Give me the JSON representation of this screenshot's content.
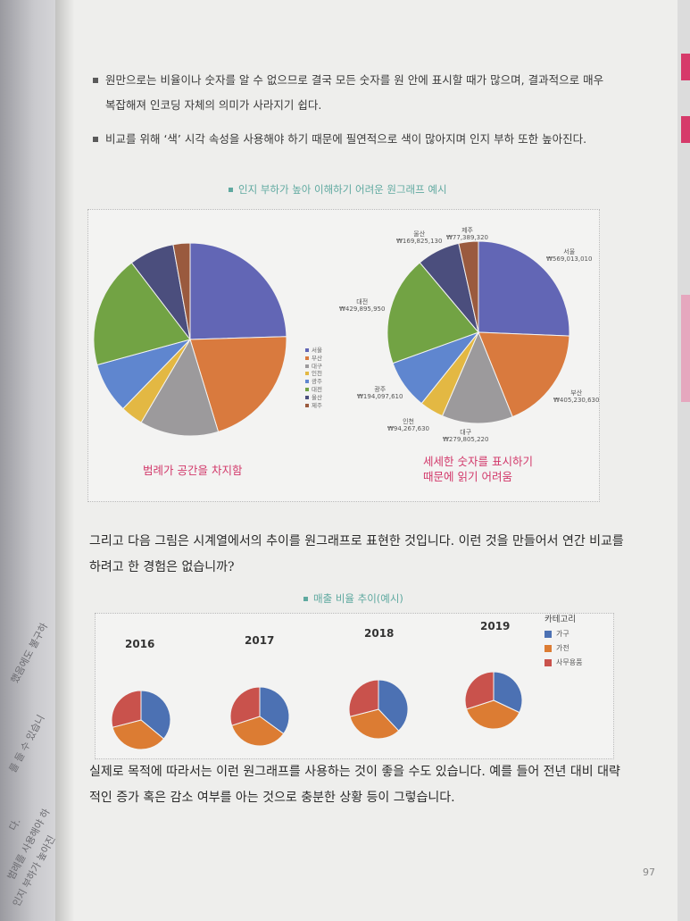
{
  "bullets": [
    "원만으로는 비율이나 숫자를 알 수 없으므로 결국 모든 숫자를 원 안에 표시할 때가 많으며, 결과적으로 매우 복잡해져 인코딩 자체의 의미가 사라지기 쉽다.",
    "비교를 위해 ‘색’ 시각 속성을 사용해야 하기 때문에 필연적으로 색이 많아지며 인지 부하 또한 높아진다."
  ],
  "figure1": {
    "caption": "인지 부하가 높아 이해하기 어려운 원그래프 예시",
    "left_annotation": "범례가 공간을 차지함",
    "right_annotation": [
      "세세한 숫자를 표시하기",
      "때문에 읽기 어려움"
    ]
  },
  "body": {
    "paragraph1": "그리고 다음 그림은 시계열에서의 추이를 원그래프로 표현한 것입니다. 이런 것을 만들어서 연간 비교를 하려고 한 경험은 없습니까?",
    "paragraph2": "실제로 목적에 따라서는 이런 원그래프를 사용하는 것이 좋을 수도 있습니다. 예를 들어 전년 대비 대략적인 증가 혹은 감소 여부를 아는 것으로 충분한 상황 등이 그렇습니다."
  },
  "figure2": {
    "caption": "매출 비율 추이(예시)"
  },
  "page_number": "97",
  "left_page_fragments": [
    "했음에도 불구하",
    "를 들 수 있습니",
    "다.",
    "범례를 사용해야 하",
    "인지 부하가 높아진"
  ],
  "colors": {
    "blue": "#6266b5",
    "orange": "#d97a3e",
    "gray": "#9c9a9c",
    "yellow": "#e3b843",
    "lightblue": "#5f86cf",
    "green": "#72a344",
    "navy": "#4b4e7d",
    "brown": "#9a5a3e",
    "cat_blue": "#4c71b3",
    "cat_orange": "#dc7c33",
    "cat_red": "#c9524c",
    "accent_caption": "#5fa9a0",
    "accent_annotation": "#d2386a"
  },
  "chart_data": [
    {
      "type": "pie",
      "title": "",
      "categories": [
        "서울",
        "부산",
        "대구",
        "인천",
        "광주",
        "대전",
        "울산",
        "제주"
      ],
      "values": [
        26,
        22,
        14,
        4,
        9,
        20,
        8,
        3
      ],
      "colors": [
        "#6266b5",
        "#d97a3e",
        "#9c9a9c",
        "#e3b843",
        "#5f86cf",
        "#72a344",
        "#4b4e7d",
        "#9a5a3e"
      ],
      "legend": "right"
    },
    {
      "type": "pie",
      "title": "",
      "categories": [
        "서울",
        "부산",
        "대구",
        "인천",
        "광주",
        "대전",
        "울산",
        "제주"
      ],
      "values": [
        569013010,
        405230630,
        279805220,
        94267630,
        194097610,
        429895950,
        169825130,
        77389320
      ],
      "value_labels": [
        "₩569,013,010",
        "₩405,230,630",
        "₩279,805,220",
        "₩94,267,630",
        "₩194,097,610",
        "₩429,895,950",
        "₩169,825,130",
        "₩77,389,320"
      ],
      "colors": [
        "#6266b5",
        "#d97a3e",
        "#9c9a9c",
        "#e3b843",
        "#5f86cf",
        "#72a344",
        "#4b4e7d",
        "#9a5a3e"
      ],
      "legend": "none"
    },
    {
      "type": "pie",
      "title": "",
      "legend_title": "카테고리",
      "categories": [
        "가구",
        "가전",
        "사무용품"
      ],
      "colors": [
        "#4c71b3",
        "#dc7c33",
        "#c9524c"
      ],
      "series": [
        {
          "name": "2016",
          "values": [
            36,
            35,
            29
          ]
        },
        {
          "name": "2017",
          "values": [
            35,
            35,
            30
          ]
        },
        {
          "name": "2018",
          "values": [
            38,
            33,
            29
          ]
        },
        {
          "name": "2019",
          "values": [
            32,
            38,
            30
          ]
        }
      ],
      "legend": "top-right"
    }
  ]
}
